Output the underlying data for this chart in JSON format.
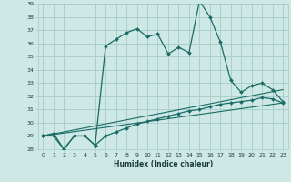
{
  "xlabel": "Humidex (Indice chaleur)",
  "background_color": "#cde8e5",
  "grid_color": "#aacfcb",
  "line_color": "#1a6b65",
  "xlim": [
    -0.5,
    23.5
  ],
  "ylim": [
    28,
    39
  ],
  "xticks": [
    0,
    1,
    2,
    3,
    4,
    5,
    6,
    7,
    8,
    9,
    10,
    11,
    12,
    13,
    14,
    15,
    16,
    17,
    18,
    19,
    20,
    21,
    22,
    23
  ],
  "yticks": [
    28,
    29,
    30,
    31,
    32,
    33,
    34,
    35,
    36,
    37,
    38,
    39
  ],
  "series1_x": [
    0,
    1,
    2,
    3,
    4,
    5,
    6,
    7,
    8,
    9,
    10,
    11,
    12,
    13,
    14,
    15,
    16,
    17,
    18,
    19,
    20,
    21,
    22,
    23
  ],
  "series1_y": [
    29.0,
    29.0,
    28.0,
    29.0,
    29.0,
    28.3,
    35.8,
    36.3,
    36.8,
    37.1,
    36.5,
    36.7,
    35.2,
    35.7,
    35.3,
    39.2,
    38.0,
    36.1,
    33.2,
    32.3,
    32.8,
    33.0,
    32.5,
    31.6
  ],
  "series2_x": [
    0,
    1,
    2,
    3,
    4,
    5,
    6,
    7,
    8,
    9,
    10,
    11,
    12,
    13,
    14,
    15,
    16,
    17,
    18,
    19,
    20,
    21,
    22,
    23
  ],
  "series2_y": [
    29.0,
    29.2,
    28.0,
    29.0,
    29.0,
    28.3,
    29.0,
    29.3,
    29.6,
    29.9,
    30.1,
    30.3,
    30.5,
    30.7,
    30.9,
    31.0,
    31.2,
    31.4,
    31.5,
    31.6,
    31.7,
    31.9,
    31.8,
    31.5
  ],
  "series3_x": [
    0,
    23
  ],
  "series3_y": [
    29.0,
    32.5
  ],
  "series4_x": [
    0,
    23
  ],
  "series4_y": [
    29.0,
    31.5
  ]
}
